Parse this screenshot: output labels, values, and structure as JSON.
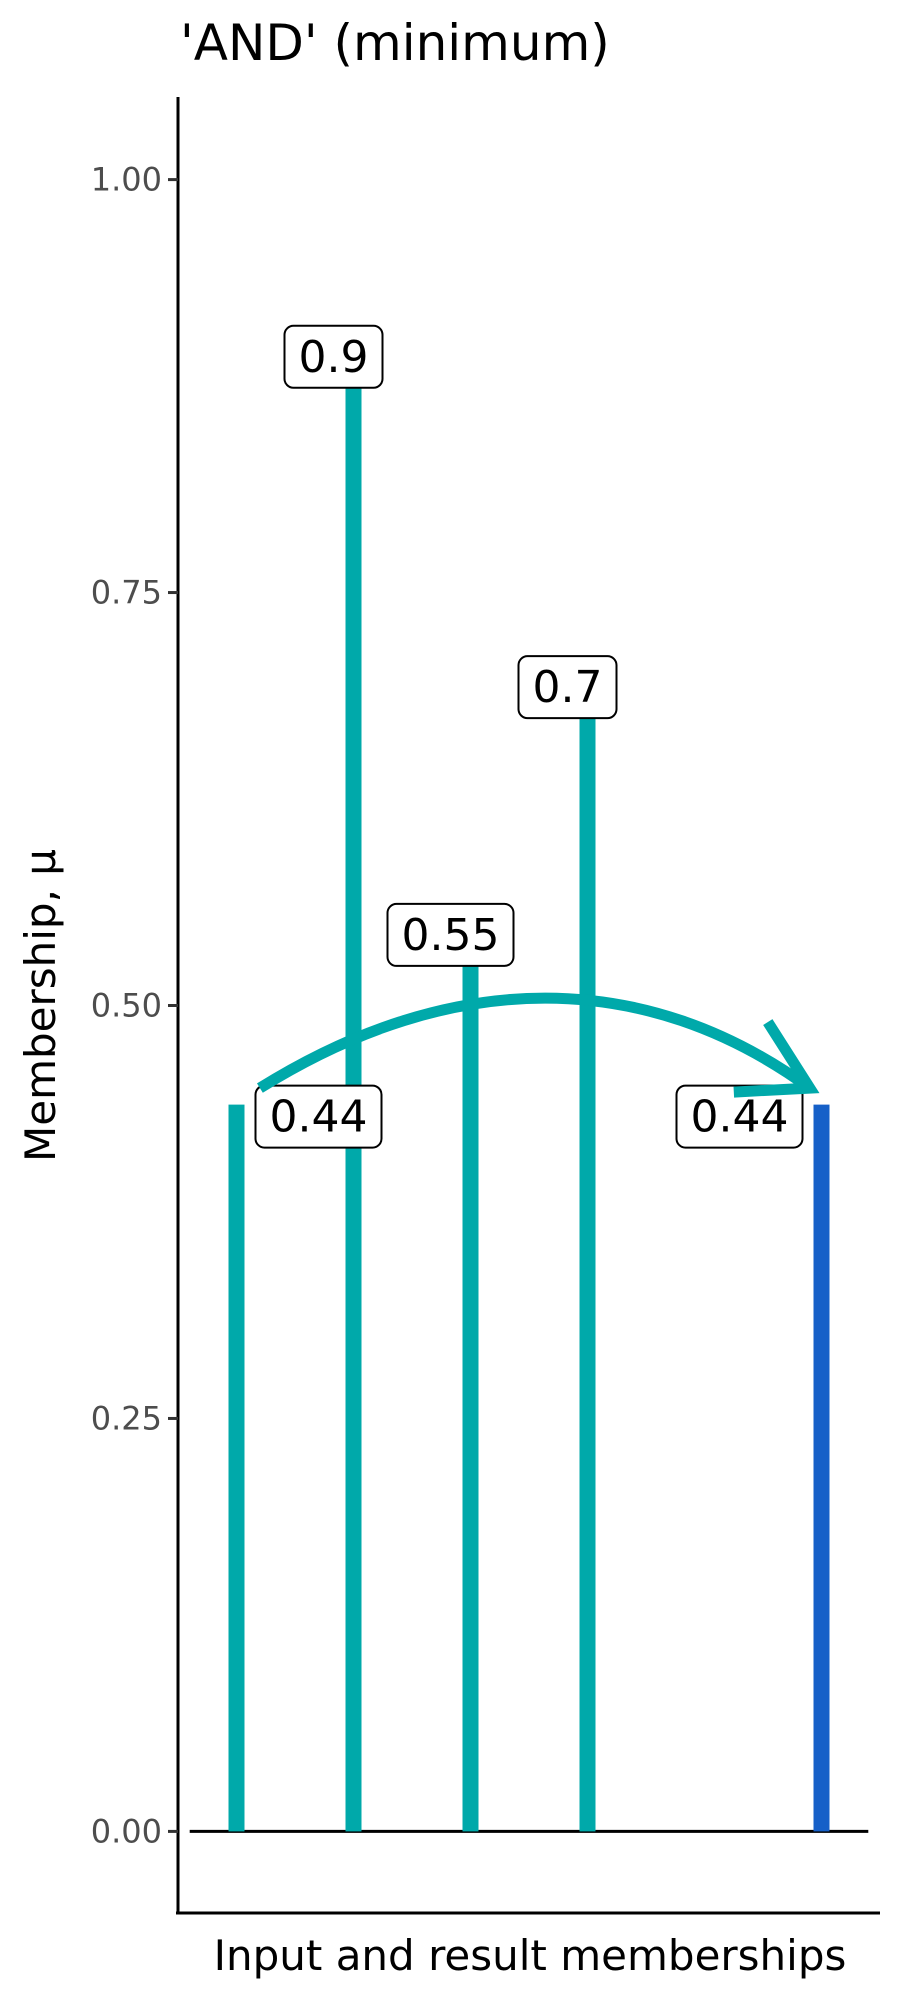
{
  "chart_data": {
    "type": "bar",
    "title": "'AND' (minimum)",
    "xlabel": "Input and result memberships",
    "ylabel": "Membership, μ",
    "ylim": [
      -0.05,
      1.05
    ],
    "y_ticks": [
      0,
      0.25,
      0.5,
      0.75,
      1
    ],
    "y_tick_labels": [
      "0.00",
      "0.25",
      "0.50",
      "0.75",
      "1.00"
    ],
    "x_range": [
      0.5,
      6.5
    ],
    "grid": false,
    "baseline": 0,
    "series": [
      {
        "role": "input",
        "color": "#00A9AA",
        "points": [
          {
            "x": 1,
            "value": 0.44,
            "label": "0.44"
          },
          {
            "x": 2,
            "value": 0.9,
            "label": "0.9"
          },
          {
            "x": 3,
            "value": 0.55,
            "label": "0.55"
          },
          {
            "x": 4,
            "value": 0.7,
            "label": "0.7"
          }
        ]
      },
      {
        "role": "result",
        "color": "#1660C8",
        "points": [
          {
            "x": 6,
            "value": 0.44,
            "label": "0.44"
          }
        ]
      }
    ],
    "arrow": {
      "from": {
        "x": 1.2,
        "y": 0.45
      },
      "to": {
        "x": 5.9,
        "y": 0.45
      },
      "color": "#00A9AA"
    }
  }
}
